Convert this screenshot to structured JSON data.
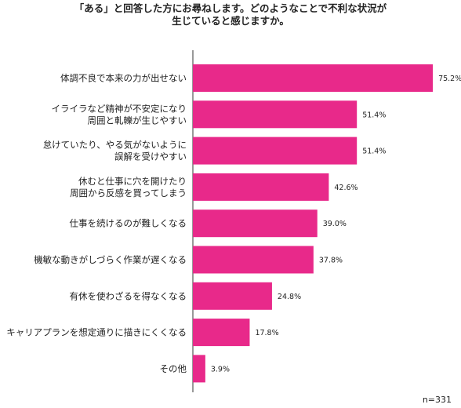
{
  "chart_data": {
    "type": "bar",
    "orientation": "horizontal",
    "title_lines": [
      "「ある」と回答した方にお尋ねします。どのようなことで不利な状況が",
      "生じていると感じますか。"
    ],
    "categories": [
      [
        "体調不良で本来の力が出せない"
      ],
      [
        "イライラなど精神が不安定になり",
        "周囲と軋轢が生じやすい"
      ],
      [
        "怠けていたり、やる気がないように",
        "誤解を受けやすい"
      ],
      [
        "休むと仕事に穴を開けたり",
        "周囲から反感を買ってしまう"
      ],
      [
        "仕事を続けるのが難しくなる"
      ],
      [
        "機敏な動きがしづらく作業が遅くなる"
      ],
      [
        "有休を使わざるを得なくなる"
      ],
      [
        "キャリアプランを想定通りに描きにくくなる"
      ],
      [
        "その他"
      ]
    ],
    "values": [
      75.2,
      51.4,
      51.4,
      42.6,
      39.0,
      37.8,
      24.8,
      17.8,
      3.9
    ],
    "value_labels": [
      "75.2%",
      "51.4%",
      "51.4%",
      "42.6%",
      "39.0%",
      "37.8%",
      "24.8%",
      "17.8%",
      "3.9%"
    ],
    "xlim": [
      0,
      100
    ],
    "bar_color": "#e8298a",
    "axis_color": "#333333",
    "grid": false,
    "note": "n=331"
  }
}
